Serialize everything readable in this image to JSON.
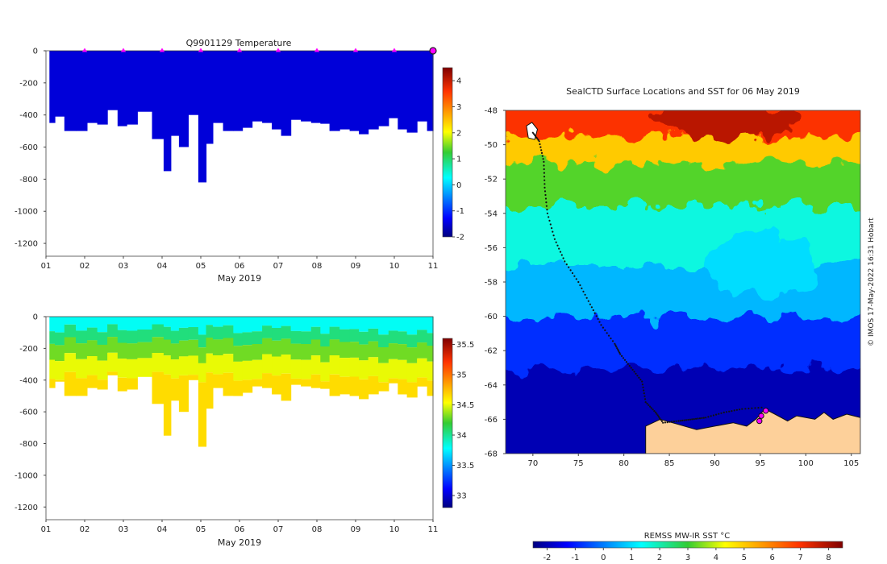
{
  "chart_data": [
    {
      "type": "heatmap",
      "title": "Q9901129  Temperature",
      "xlabel": "May 2019",
      "ylabel": "",
      "x_ticks": [
        "01",
        "02",
        "03",
        "04",
        "05",
        "06",
        "07",
        "08",
        "09",
        "10",
        "11"
      ],
      "xlim": [
        1,
        11
      ],
      "ylim": [
        -1280,
        0
      ],
      "y_ticks": [
        0,
        -200,
        -400,
        -600,
        -800,
        -1000,
        -1200
      ],
      "profile_days": [
        1.13,
        1.33,
        1.62,
        1.92,
        2.2,
        2.45,
        2.72,
        2.98,
        3.19,
        3.53,
        3.95,
        4.13,
        4.32,
        4.55,
        4.8,
        5.07,
        5.2,
        5.42,
        5.73,
        5.95,
        6.2,
        6.45,
        6.72,
        6.95,
        7.2,
        7.45,
        7.72,
        7.98,
        8.2,
        8.45,
        8.72,
        8.97,
        9.2,
        9.45,
        9.72,
        9.98,
        10.2,
        10.45,
        10.72,
        10.97
      ],
      "profile_max_depth": [
        -450,
        -410,
        -500,
        -500,
        -450,
        -460,
        -370,
        -470,
        -460,
        -380,
        -550,
        -750,
        -530,
        -600,
        -400,
        -820,
        -580,
        -450,
        -500,
        -500,
        -480,
        -440,
        -450,
        -490,
        -530,
        -430,
        -440,
        -450,
        -455,
        -500,
        -490,
        -500,
        -520,
        -490,
        -470,
        -420,
        -490,
        -510,
        -440,
        -500
      ],
      "marker_days": [
        2,
        3,
        4,
        5,
        6,
        7,
        8,
        9,
        10,
        11
      ],
      "value_range": [
        -2,
        4.5
      ],
      "colorbar_ticks": [
        "4",
        "3",
        "2",
        "1",
        "0",
        "-1",
        "-2"
      ],
      "observed_value": "approx -1.5 (near freezing, uniform)"
    },
    {
      "type": "heatmap",
      "title": "",
      "xlabel": "May 2019",
      "ylabel": "",
      "x_ticks": [
        "01",
        "02",
        "03",
        "04",
        "05",
        "06",
        "07",
        "08",
        "09",
        "10",
        "11"
      ],
      "xlim": [
        1,
        11
      ],
      "ylim": [
        -1280,
        0
      ],
      "y_ticks": [
        0,
        -200,
        -400,
        -600,
        -800,
        -1000,
        -1200
      ],
      "value_range": [
        32.8,
        35.6
      ],
      "colorbar_ticks": [
        "35.5",
        "35",
        "34.5",
        "34",
        "33.5",
        "33"
      ],
      "depth_bands": [
        {
          "depth": [
            0,
            -80
          ],
          "value": 33.8
        },
        {
          "depth": [
            -80,
            -160
          ],
          "value": 34.05
        },
        {
          "depth": [
            -160,
            -260
          ],
          "value": 34.3
        },
        {
          "depth": [
            -260,
            -380
          ],
          "value": 34.5
        },
        {
          "depth": [
            -380,
            -900
          ],
          "value": 34.65
        }
      ]
    },
    {
      "type": "heatmap",
      "title": "SealCTD Surface Locations and SST for 06 May 2019",
      "xlabel": "",
      "ylabel": "",
      "xlim": [
        67,
        106
      ],
      "ylim": [
        -68,
        -48
      ],
      "x_ticks": [
        "70",
        "75",
        "80",
        "85",
        "90",
        "95",
        "100",
        "105"
      ],
      "y_ticks": [
        "-48",
        "-50",
        "-52",
        "-54",
        "-56",
        "-58",
        "-60",
        "-62",
        "-64",
        "-66",
        "-68"
      ],
      "colorbar_title": "REMSS MW-IR SST °C",
      "colorbar_ticks": [
        "-2",
        "-1",
        "0",
        "1",
        "2",
        "3",
        "4",
        "5",
        "6",
        "7",
        "8"
      ],
      "value_range": [
        -2.5,
        8.5
      ],
      "credit": "© IMOS 17-May-2022 16:31 Hobart",
      "sst_bands": [
        {
          "lat": [
            -48,
            -50.5
          ],
          "value": 7.0
        },
        {
          "lat": [
            -50.5,
            -52
          ],
          "value": 5.0
        },
        {
          "lat": [
            -52,
            -54.5
          ],
          "value": 3.2
        },
        {
          "lat": [
            -54.5,
            -58
          ],
          "value": 1.6
        },
        {
          "lat": [
            -58,
            -61
          ],
          "value": 0.6
        },
        {
          "lat": [
            -61,
            -64
          ],
          "value": -0.8
        },
        {
          "lat": [
            -64,
            -68
          ],
          "value": -2.0
        }
      ],
      "track": [
        [
          70,
          -49.3
        ],
        [
          70.7,
          -49.8
        ],
        [
          71.2,
          -51
        ],
        [
          71.3,
          -52.5
        ],
        [
          71.6,
          -54
        ],
        [
          72.4,
          -55.5
        ],
        [
          73.5,
          -56.8
        ],
        [
          75,
          -58
        ],
        [
          76.3,
          -59.3
        ],
        [
          77.5,
          -60.5
        ],
        [
          79,
          -61.6
        ],
        [
          79.6,
          -62.2
        ],
        [
          80.8,
          -63
        ],
        [
          82,
          -63.8
        ],
        [
          82.4,
          -65
        ],
        [
          83.5,
          -65.6
        ],
        [
          84.3,
          -66.2
        ],
        [
          86,
          -66.1
        ],
        [
          87.5,
          -66
        ],
        [
          89,
          -65.9
        ],
        [
          91,
          -65.6
        ],
        [
          93,
          -65.4
        ],
        [
          95.5,
          -65.3
        ]
      ],
      "highlighted_points": [
        [
          95.6,
          -65.5
        ],
        [
          95.1,
          -65.8
        ],
        [
          94.9,
          -66.1
        ]
      ],
      "land": [
        {
          "name": "Antarctica",
          "outline": [
            [
              82.4,
              -66.4
            ],
            [
              84,
              -66
            ],
            [
              86,
              -66.3
            ],
            [
              88,
              -66.6
            ],
            [
              90,
              -66.4
            ],
            [
              92,
              -66.2
            ],
            [
              93.5,
              -66.4
            ],
            [
              94.5,
              -66
            ],
            [
              95.5,
              -65.4
            ],
            [
              96.6,
              -65.7
            ],
            [
              98,
              -66.1
            ],
            [
              99,
              -65.8
            ],
            [
              101,
              -66
            ],
            [
              102,
              -65.6
            ],
            [
              103,
              -66
            ],
            [
              104.5,
              -65.7
            ],
            [
              106,
              -65.9
            ],
            [
              106,
              -68
            ],
            [
              82.4,
              -68
            ]
          ]
        },
        {
          "name": "Kerguelen",
          "outline": [
            [
              69.3,
              -48.9
            ],
            [
              69.9,
              -48.7
            ],
            [
              70.5,
              -49.1
            ],
            [
              70.2,
              -49.7
            ],
            [
              69.5,
              -49.6
            ]
          ]
        }
      ]
    }
  ]
}
